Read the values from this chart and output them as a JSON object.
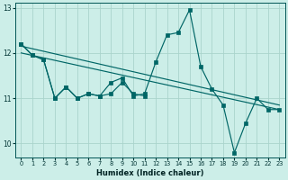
{
  "xlabel": "Humidex (Indice chaleur)",
  "bg_color": "#cceee8",
  "grid_color": "#aad4cc",
  "line_color": "#006666",
  "x": [
    0,
    1,
    2,
    3,
    4,
    5,
    6,
    7,
    8,
    9,
    10,
    11,
    12,
    13,
    14,
    15,
    16,
    17,
    18,
    19,
    20,
    21,
    22,
    23
  ],
  "series_main": [
    12.2,
    11.95,
    11.85,
    11.0,
    11.25,
    11.0,
    11.1,
    11.05,
    11.35,
    11.45,
    11.05,
    11.1,
    11.8,
    12.4,
    12.45,
    12.95,
    11.7,
    11.2,
    10.85,
    9.8,
    10.45,
    11.0,
    10.75,
    10.75
  ],
  "series_short": [
    12.2,
    11.95,
    11.85,
    11.0,
    11.25,
    11.0,
    11.1,
    11.05,
    11.1,
    11.35,
    11.1,
    11.05,
    null,
    null,
    null,
    null,
    null,
    null,
    null,
    null,
    null,
    null,
    null,
    null
  ],
  "trend_line": [
    [
      0,
      12.15
    ],
    [
      23,
      10.85
    ]
  ],
  "trend_line2": [
    [
      0,
      12.0
    ],
    [
      23,
      10.75
    ]
  ],
  "ylim": [
    9.7,
    13.1
  ],
  "xlim": [
    -0.5,
    23.5
  ],
  "yticks": [
    10,
    11,
    12,
    13
  ],
  "xticks": [
    0,
    1,
    2,
    3,
    4,
    5,
    6,
    7,
    8,
    9,
    10,
    11,
    12,
    13,
    14,
    15,
    16,
    17,
    18,
    19,
    20,
    21,
    22,
    23
  ]
}
